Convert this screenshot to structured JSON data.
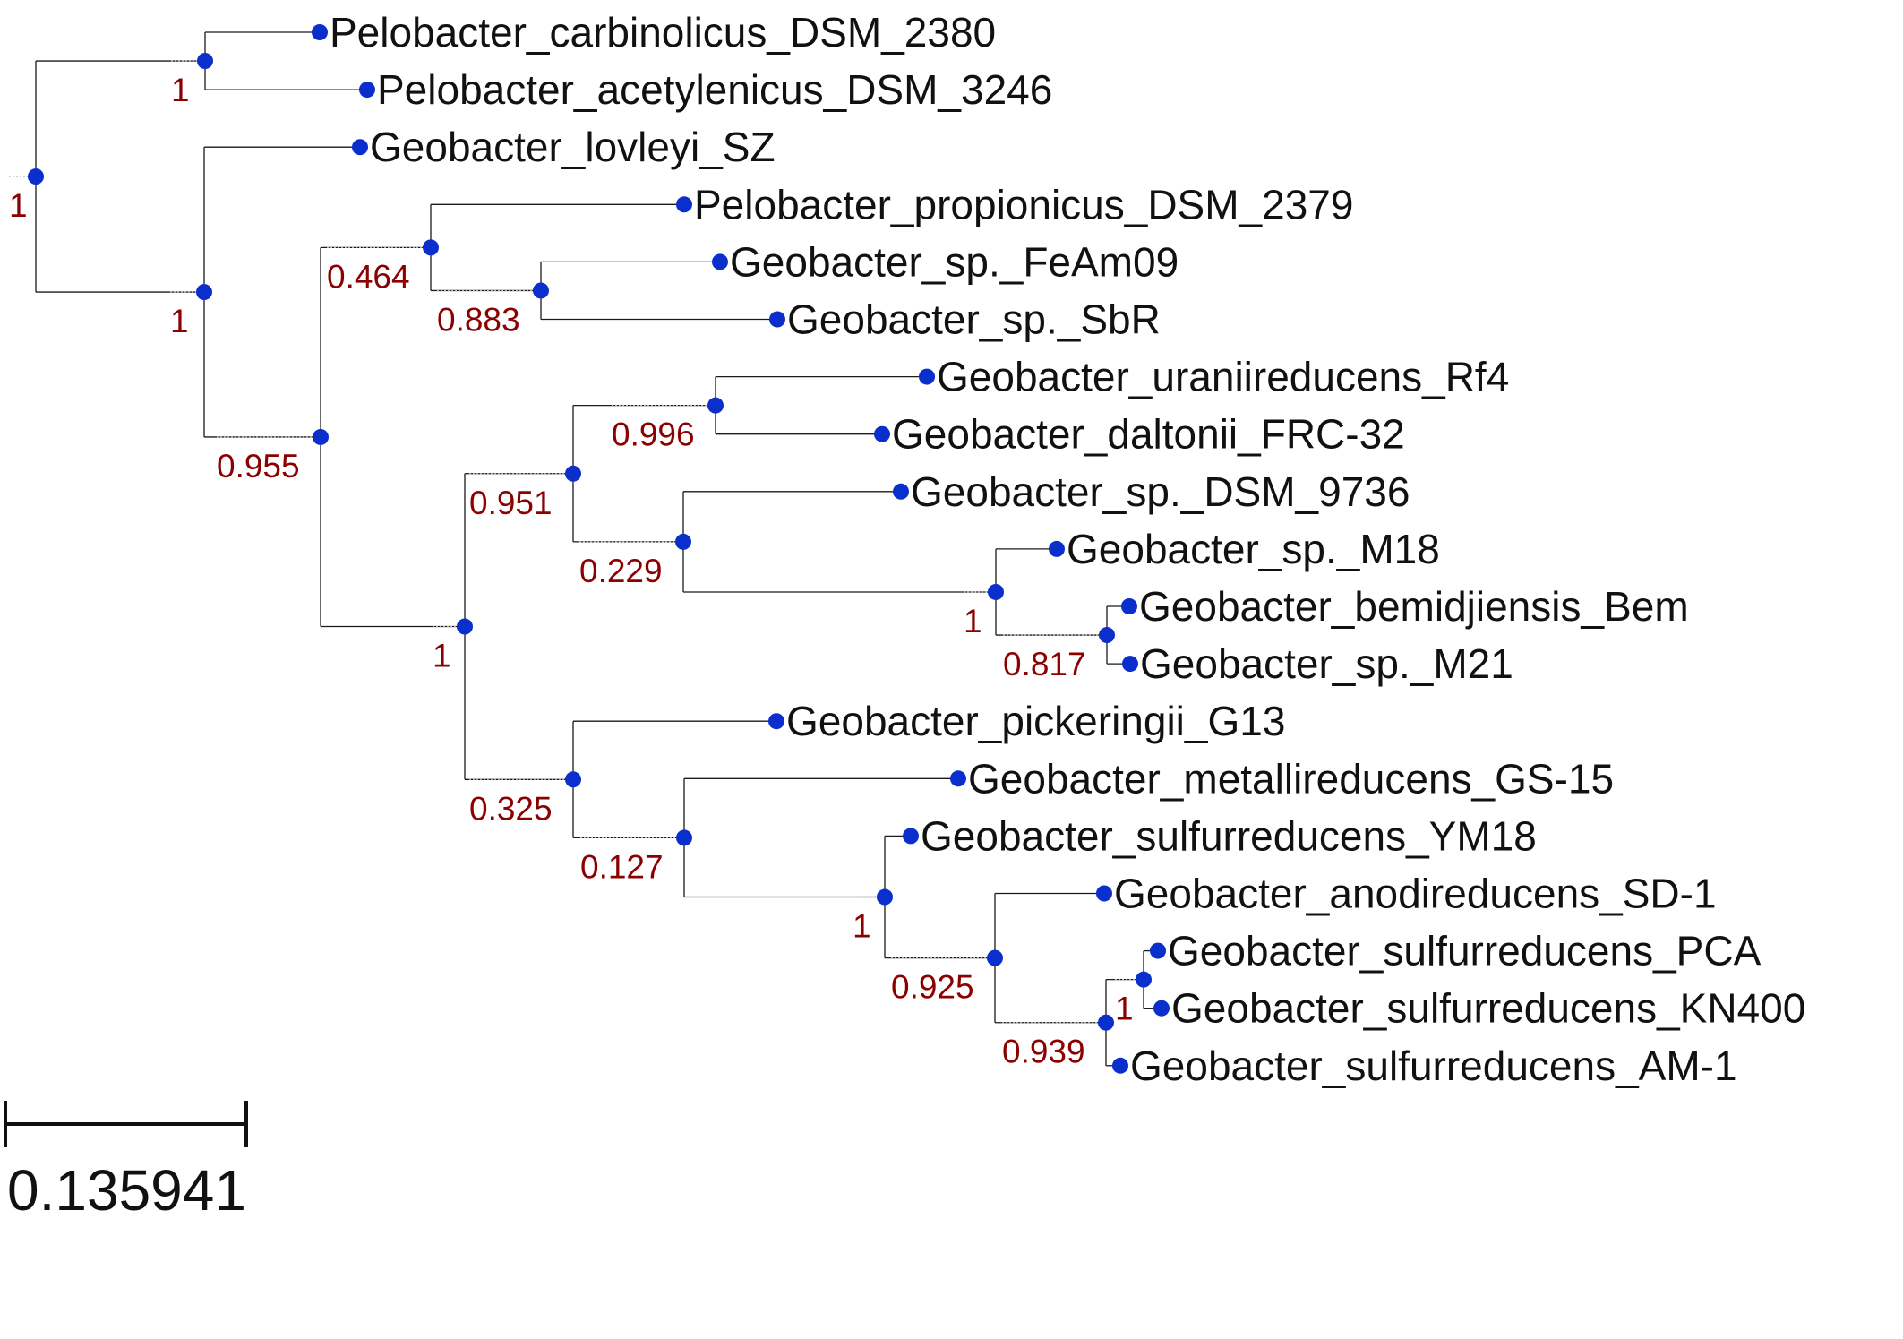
{
  "colors": {
    "node": "#0a2fcc",
    "support": "#8b0000",
    "branch": "#1a1a1a"
  },
  "tree": {
    "leaves": [
      {
        "id": "carb",
        "label": "Pelobacter_carbinolicus_DSM_2380"
      },
      {
        "id": "acet",
        "label": "Pelobacter_acetylenicus_DSM_3246"
      },
      {
        "id": "lovl",
        "label": "Geobacter_lovleyi_SZ"
      },
      {
        "id": "prop",
        "label": "Pelobacter_propionicus_DSM_2379"
      },
      {
        "id": "feam",
        "label": "Geobacter_sp._FeAm09"
      },
      {
        "id": "sbr",
        "label": "Geobacter_sp._SbR"
      },
      {
        "id": "uran",
        "label": "Geobacter_uraniireducens_Rf4"
      },
      {
        "id": "dalt",
        "label": "Geobacter_daltonii_FRC-32"
      },
      {
        "id": "dsm9736",
        "label": "Geobacter_sp._DSM_9736"
      },
      {
        "id": "m18",
        "label": "Geobacter_sp._M18"
      },
      {
        "id": "bemi",
        "label": "Geobacter_bemidjiensis_Bem"
      },
      {
        "id": "m21",
        "label": "Geobacter_sp._M21"
      },
      {
        "id": "pick",
        "label": "Geobacter_pickeringii_G13"
      },
      {
        "id": "meta",
        "label": "Geobacter_metallireducens_GS-15"
      },
      {
        "id": "ym18",
        "label": "Geobacter_sulfurreducens_YM18"
      },
      {
        "id": "anod",
        "label": "Geobacter_anodireducens_SD-1"
      },
      {
        "id": "pca",
        "label": "Geobacter_sulfurreducens_PCA"
      },
      {
        "id": "kn400",
        "label": "Geobacter_sulfurreducens_KN400"
      },
      {
        "id": "am1",
        "label": "Geobacter_sulfurreducens_AM-1"
      }
    ],
    "internal_nodes": [
      {
        "id": "root",
        "support": "1",
        "children": [
          "n_pelo",
          "n_main"
        ]
      },
      {
        "id": "n_pelo",
        "support": "1",
        "children": [
          "carb",
          "acet"
        ]
      },
      {
        "id": "n_main",
        "support": "1",
        "children": [
          "lovl",
          "n_0955"
        ]
      },
      {
        "id": "n_0955",
        "support": "0.955",
        "children": [
          "n_0464",
          "n_big"
        ]
      },
      {
        "id": "n_0464",
        "support": "0.464",
        "children": [
          "prop",
          "n_0883"
        ]
      },
      {
        "id": "n_0883",
        "support": "0.883",
        "children": [
          "feam",
          "sbr"
        ]
      },
      {
        "id": "n_big",
        "support": "1",
        "children": [
          "n_0951",
          "n_0325"
        ]
      },
      {
        "id": "n_0951",
        "support": "0.951",
        "children": [
          "n_0996",
          "n_0229"
        ]
      },
      {
        "id": "n_0996",
        "support": "0.996",
        "children": [
          "uran",
          "dalt"
        ]
      },
      {
        "id": "n_0229",
        "support": "0.229",
        "children": [
          "dsm9736",
          "n_m"
        ]
      },
      {
        "id": "n_m",
        "support": "1",
        "children": [
          "m18",
          "n_0817"
        ]
      },
      {
        "id": "n_0817",
        "support": "0.817",
        "children": [
          "bemi",
          "m21"
        ]
      },
      {
        "id": "n_0325",
        "support": "0.325",
        "children": [
          "pick",
          "n_0127"
        ]
      },
      {
        "id": "n_0127",
        "support": "0.127",
        "children": [
          "meta",
          "n_sulf"
        ]
      },
      {
        "id": "n_sulf",
        "support": "1",
        "children": [
          "ym18",
          "n_0925"
        ]
      },
      {
        "id": "n_0925",
        "support": "0.925",
        "children": [
          "anod",
          "n_0939"
        ]
      },
      {
        "id": "n_0939",
        "support": "0.939",
        "children": [
          "n_pk",
          "am1"
        ]
      },
      {
        "id": "n_pk",
        "support": "1",
        "children": [
          "pca",
          "kn400"
        ]
      }
    ]
  },
  "scale_bar": {
    "label": "0.135941"
  }
}
